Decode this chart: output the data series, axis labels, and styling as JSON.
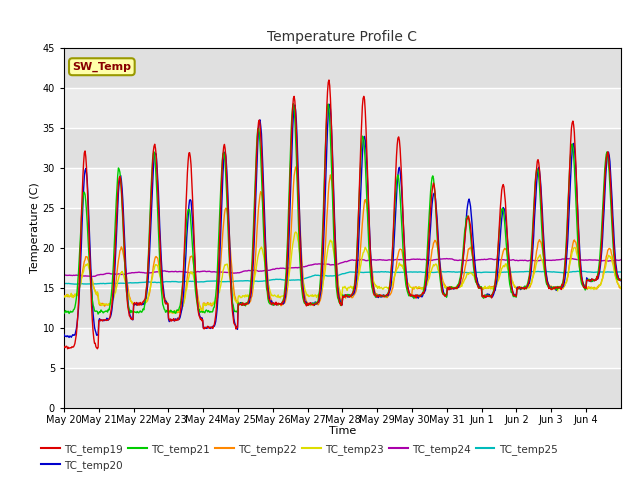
{
  "title": "Temperature Profile C",
  "xlabel": "Time",
  "ylabel": "Temperature (C)",
  "ylim": [
    0,
    45
  ],
  "yticks": [
    0,
    5,
    10,
    15,
    20,
    25,
    30,
    35,
    40,
    45
  ],
  "plot_bg": "#e8e8e8",
  "series_colors": {
    "TC_temp19": "#dd0000",
    "TC_temp20": "#0000cc",
    "TC_temp21": "#00cc00",
    "TC_temp22": "#ff8800",
    "TC_temp23": "#dddd00",
    "TC_temp24": "#aa00aa",
    "TC_temp25": "#00bbbb"
  },
  "sw_temp_box_color": "#ffffaa",
  "sw_temp_border_color": "#999900",
  "sw_temp_text_color": "#880000",
  "n_days": 16,
  "samples_per_day": 48,
  "date_labels": [
    "May 20",
    "May 21",
    "May 22",
    "May 23",
    "May 24",
    "May 25",
    "May 26",
    "May 27",
    "May 28",
    "May 29",
    "May 30",
    "May 31",
    "Jun 1",
    "Jun 2",
    "Jun 3",
    "Jun 4"
  ],
  "peaks19": [
    32,
    29,
    33,
    32,
    33,
    36,
    39,
    41,
    39,
    34,
    28,
    24,
    28,
    31,
    36,
    32
  ],
  "troughs19": [
    7.5,
    11,
    13,
    11,
    10,
    13,
    13,
    13,
    14,
    14,
    14,
    15,
    14,
    15,
    15,
    16
  ],
  "peaks20": [
    30,
    29,
    32,
    26,
    32,
    36,
    38,
    38,
    34,
    30,
    27,
    26,
    25,
    30,
    33,
    32
  ],
  "troughs20": [
    9,
    11,
    13,
    11,
    10,
    13,
    13,
    13,
    14,
    14,
    14,
    15,
    14,
    15,
    15,
    16
  ],
  "peaks21": [
    27,
    30,
    32,
    25,
    32,
    35,
    38,
    38,
    34,
    29,
    29,
    24,
    25,
    30,
    33,
    32
  ],
  "troughs21": [
    12,
    12,
    12,
    12,
    12,
    13,
    13,
    13,
    14,
    14,
    14,
    15,
    14,
    15,
    15,
    16
  ],
  "peaks22": [
    19,
    20,
    19,
    19,
    25,
    27,
    30,
    29,
    26,
    20,
    21,
    20,
    20,
    21,
    21,
    20
  ],
  "troughs22": [
    14,
    13,
    13,
    12,
    13,
    13,
    13,
    13,
    14,
    14,
    15,
    15,
    15,
    15,
    15,
    15
  ],
  "peaks23": [
    18,
    17,
    18,
    17,
    18,
    20,
    22,
    21,
    20,
    18,
    18,
    17,
    18,
    19,
    20,
    19
  ],
  "troughs23": [
    14,
    13,
    13,
    12,
    13,
    14,
    14,
    14,
    15,
    15,
    15,
    15,
    15,
    15,
    15,
    15
  ],
  "tc24_base": [
    16.5,
    16.8,
    17.0,
    17.0,
    17.0,
    17.2,
    17.5,
    18.0,
    18.5,
    18.5,
    18.5,
    18.5,
    18.5,
    18.5,
    18.5,
    18.5
  ],
  "tc25_base": [
    15.5,
    15.6,
    15.7,
    15.8,
    15.8,
    15.9,
    16.0,
    16.5,
    17.0,
    17.0,
    17.0,
    17.0,
    17.0,
    17.0,
    17.0,
    17.0
  ]
}
